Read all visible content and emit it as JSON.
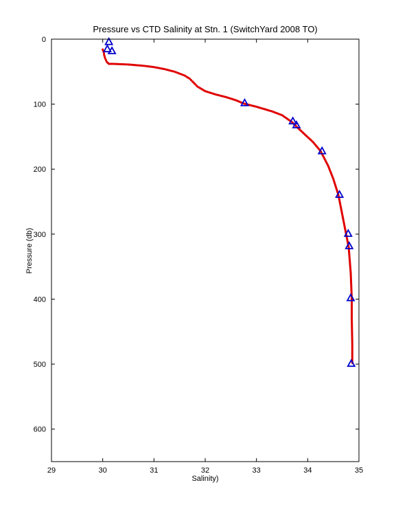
{
  "chart_data": {
    "type": "scatter",
    "title": "Pressure vs CTD Salinity at Stn. 1 (SwitchYard 2008 TO)",
    "xlabel": "Salinity)",
    "ylabel": "Pressure (db)",
    "xlim": [
      29,
      35
    ],
    "ylim": [
      0,
      650
    ],
    "y_reversed": true,
    "grid": false,
    "x_ticks": [
      "29",
      "30",
      "31",
      "32",
      "33",
      "34",
      "35"
    ],
    "y_ticks": [
      "0",
      "100",
      "200",
      "300",
      "400",
      "500",
      "600"
    ],
    "series": [
      {
        "marker": "dot-line",
        "color": "#e00000",
        "x": [
          30.0,
          30.02,
          30.03,
          30.05,
          30.08,
          30.12,
          30.2,
          30.5,
          30.8,
          31.0,
          31.2,
          31.4,
          31.6,
          31.7,
          31.75,
          31.85,
          32.0,
          32.2,
          32.4,
          32.6,
          32.75,
          33.0,
          33.3,
          33.5,
          33.7,
          33.8,
          33.95,
          34.1,
          34.25,
          34.4,
          34.5,
          34.6,
          34.65,
          34.7,
          34.75,
          34.8,
          34.82,
          34.84,
          34.85,
          34.86,
          34.86,
          34.87,
          34.87
        ],
        "y": [
          16,
          20,
          25,
          30,
          35,
          38,
          38,
          39,
          41,
          43,
          46,
          50,
          56,
          61,
          65,
          73,
          80,
          85,
          89,
          94,
          99,
          104,
          111,
          117,
          128,
          136,
          147,
          158,
          172,
          195,
          215,
          240,
          260,
          280,
          300,
          320,
          340,
          360,
          380,
          400,
          430,
          470,
          500
        ]
      },
      {
        "marker": "triangle",
        "color": "#0000cc",
        "x": [
          30.12,
          30.09,
          30.18,
          32.77,
          33.71,
          33.78,
          34.28,
          34.62,
          34.79,
          34.81,
          34.84,
          34.85
        ],
        "y": [
          4,
          15,
          18,
          98,
          126,
          132,
          172,
          239,
          299,
          318,
          398,
          499
        ]
      }
    ]
  }
}
